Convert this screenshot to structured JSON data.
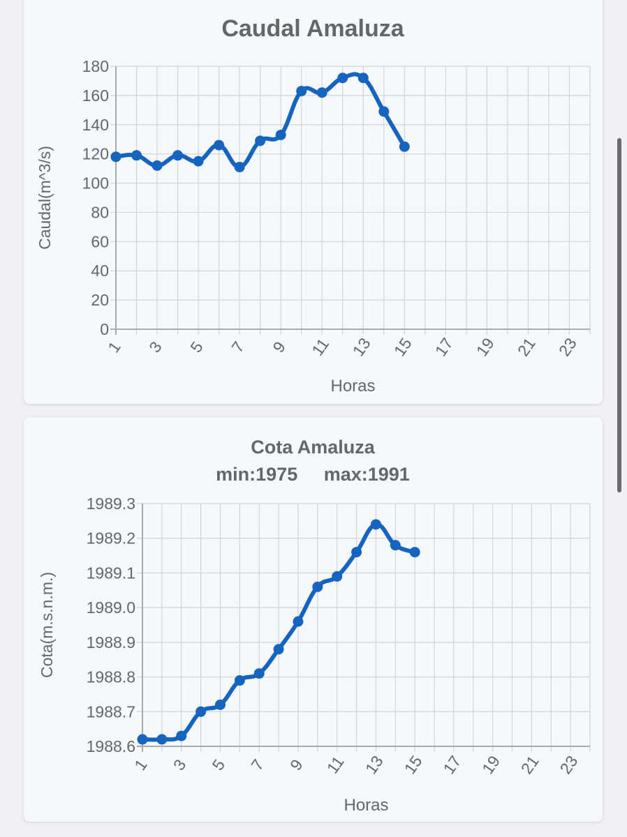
{
  "chart_data": [
    {
      "type": "line",
      "title": "Caudal Amaluza",
      "subtitle": "",
      "xlabel": "Horas",
      "ylabel": "Caudal(m^3/s)",
      "x_ticks": [
        "1",
        "3",
        "5",
        "7",
        "9",
        "11",
        "13",
        "15",
        "17",
        "19",
        "21",
        "23"
      ],
      "xlim": [
        1,
        24
      ],
      "ylim": [
        0,
        180
      ],
      "y_ticks": [
        "0",
        "20",
        "40",
        "60",
        "80",
        "100",
        "120",
        "140",
        "160",
        "180"
      ],
      "y_tick_values": [
        0,
        20,
        40,
        60,
        80,
        100,
        120,
        140,
        160,
        180
      ],
      "grid": true,
      "color": "#1565c0",
      "x": [
        1,
        2,
        3,
        4,
        5,
        6,
        7,
        8,
        9,
        10,
        11,
        12,
        13,
        14,
        15
      ],
      "values": [
        118,
        119,
        112,
        119,
        115,
        126,
        111,
        129,
        133,
        163,
        162,
        172,
        172,
        149,
        125
      ]
    },
    {
      "type": "line",
      "title": "Cota Amaluza",
      "subtitle": "min:1975     max:1991",
      "xlabel": "Horas",
      "ylabel": "Cota(m.s.n.m.)",
      "x_ticks": [
        "1",
        "3",
        "5",
        "7",
        "9",
        "11",
        "13",
        "15",
        "17",
        "19",
        "21",
        "23"
      ],
      "xlim": [
        1,
        24
      ],
      "ylim": [
        1988.6,
        1989.3
      ],
      "y_ticks": [
        "1988.6",
        "1988.7",
        "1988.8",
        "1988.9",
        "1989.0",
        "1989.1",
        "1989.2",
        "1989.3"
      ],
      "y_tick_values": [
        1988.6,
        1988.7,
        1988.8,
        1988.9,
        1989.0,
        1989.1,
        1989.2,
        1989.3
      ],
      "grid": true,
      "color": "#1565c0",
      "x": [
        1,
        2,
        3,
        4,
        5,
        6,
        7,
        8,
        9,
        10,
        11,
        12,
        13,
        14,
        15
      ],
      "values": [
        1988.62,
        1988.62,
        1988.63,
        1988.7,
        1988.72,
        1988.79,
        1988.81,
        1988.88,
        1988.96,
        1989.06,
        1989.09,
        1989.16,
        1989.24,
        1989.18,
        1989.16
      ]
    }
  ]
}
